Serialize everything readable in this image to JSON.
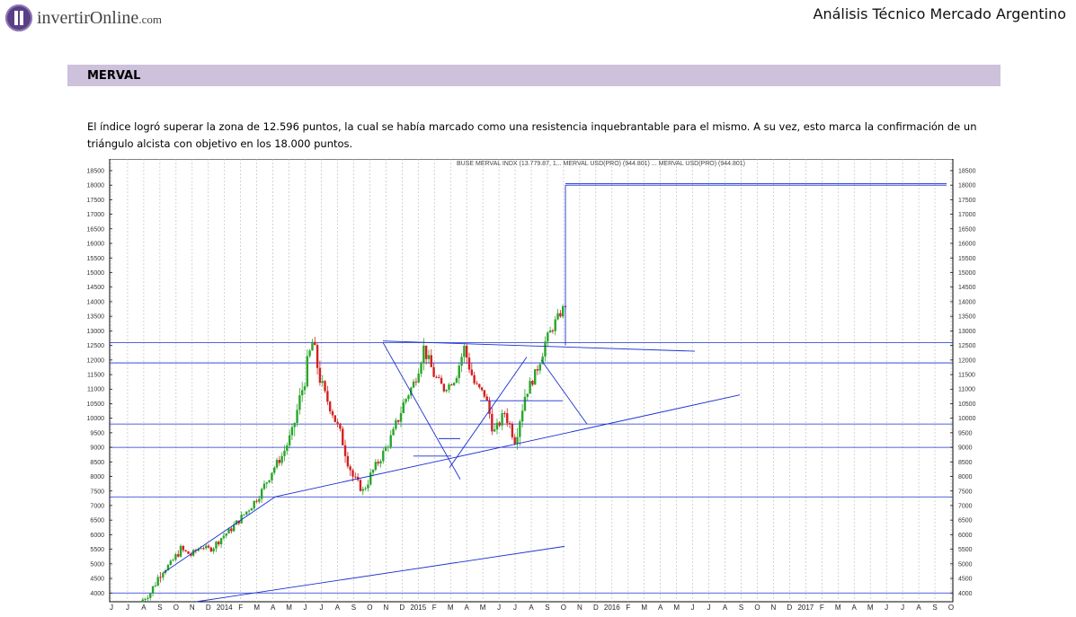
{
  "header": {
    "logo_text": "invertirOnline",
    "logo_domain": ".com",
    "doc_title": "Análisis Técnico Mercado Argentino"
  },
  "section": {
    "title": "MERVAL",
    "paragraph": "El índice logró superar la zona de 12.596 puntos, la cual se había marcado como una resistencia inquebrantable para el mismo. A su vez, esto marca la confirmación de un triángulo alcista con objetivo en los 18.000 puntos."
  },
  "colors": {
    "candle_up": "#2aa52a",
    "candle_down": "#d42020",
    "trendline": "#1a2fd0",
    "grid": "#b8b8b8",
    "section_bar": "#cdc1dc"
  },
  "chart_data": {
    "type": "candlestick",
    "title": "BUSE MERVAL INDX (13.779.87, 1... MERVAL USD(PRO) (944.801) ... MERVAL USD(PRO) (944.801)",
    "ylim": [
      3700,
      18900
    ],
    "y_ticks": [
      4000,
      4500,
      5000,
      5500,
      6000,
      6500,
      7000,
      7500,
      8000,
      8500,
      9000,
      9500,
      10000,
      10500,
      11000,
      11500,
      12000,
      12500,
      13000,
      13500,
      14000,
      14500,
      15000,
      15500,
      16000,
      16500,
      17000,
      17500,
      18000,
      18500
    ],
    "x_tick_labels": [
      "J",
      "J",
      "A",
      "S",
      "O",
      "N",
      "D",
      "2014",
      "F",
      "M",
      "A",
      "M",
      "J",
      "J",
      "A",
      "S",
      "O",
      "N",
      "D",
      "2015",
      "F",
      "M",
      "A",
      "M",
      "J",
      "J",
      "A",
      "S",
      "O",
      "N",
      "D",
      "2016",
      "F",
      "M",
      "A",
      "M",
      "J",
      "J",
      "A",
      "S",
      "O",
      "N",
      "D",
      "2017",
      "F",
      "M",
      "A",
      "M",
      "J",
      "J",
      "A",
      "S",
      "O"
    ],
    "price_path": [
      [
        0,
        3700
      ],
      [
        2,
        4000
      ],
      [
        4,
        4700
      ],
      [
        6,
        5000
      ],
      [
        7,
        5500
      ],
      [
        8,
        5300
      ],
      [
        9,
        5600
      ],
      [
        10,
        5500
      ],
      [
        11,
        5900
      ],
      [
        12,
        6200
      ],
      [
        13,
        6600
      ],
      [
        14,
        7000
      ],
      [
        15,
        7500
      ],
      [
        16,
        8200
      ],
      [
        17,
        8700
      ],
      [
        18,
        9500
      ],
      [
        19,
        11000
      ],
      [
        20,
        12600
      ],
      [
        21,
        11000
      ],
      [
        22,
        10200
      ],
      [
        23,
        9200
      ],
      [
        24,
        8000
      ],
      [
        25,
        7500
      ],
      [
        26,
        8200
      ],
      [
        27,
        8800
      ],
      [
        28,
        9500
      ],
      [
        29,
        10500
      ],
      [
        30,
        11200
      ],
      [
        31,
        12400
      ],
      [
        32,
        11500
      ],
      [
        33,
        11000
      ],
      [
        34,
        11300
      ],
      [
        35,
        12400
      ],
      [
        36,
        11200
      ],
      [
        37,
        10800
      ],
      [
        38,
        9500
      ],
      [
        39,
        10200
      ],
      [
        40,
        9300
      ],
      [
        41,
        10800
      ],
      [
        42,
        11500
      ],
      [
        43,
        12600
      ],
      [
        44,
        13300
      ],
      [
        45,
        13900
      ]
    ],
    "horizontal_levels": [
      12596,
      11900,
      9800,
      9000,
      7300,
      4000
    ],
    "target_level": 18000,
    "annotations": [
      {
        "label": "resistencia",
        "value": 12596
      },
      {
        "label": "objetivo",
        "value": 18000
      }
    ]
  }
}
